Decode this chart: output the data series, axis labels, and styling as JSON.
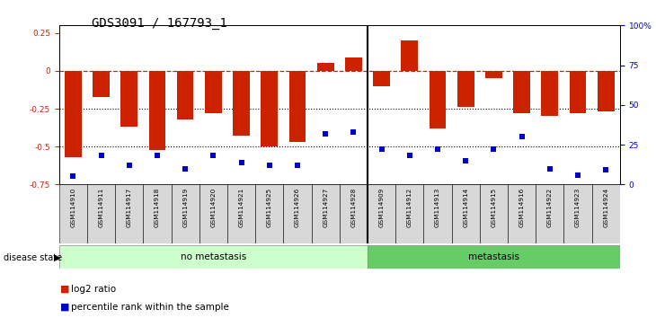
{
  "title": "GDS3091 / 167793_1",
  "samples": [
    "GSM114910",
    "GSM114911",
    "GSM114917",
    "GSM114918",
    "GSM114919",
    "GSM114920",
    "GSM114921",
    "GSM114925",
    "GSM114926",
    "GSM114927",
    "GSM114928",
    "GSM114909",
    "GSM114912",
    "GSM114913",
    "GSM114914",
    "GSM114915",
    "GSM114916",
    "GSM114922",
    "GSM114923",
    "GSM114924"
  ],
  "log2_ratio": [
    -0.57,
    -0.17,
    -0.37,
    -0.52,
    -0.32,
    -0.28,
    -0.43,
    -0.5,
    -0.47,
    0.05,
    0.09,
    -0.1,
    0.2,
    -0.38,
    -0.24,
    -0.05,
    -0.28,
    -0.3,
    -0.28,
    -0.27
  ],
  "percentile_pct": [
    5,
    18,
    12,
    18,
    10,
    18,
    14,
    12,
    12,
    32,
    33,
    22,
    18,
    22,
    15,
    22,
    30,
    10,
    6,
    9
  ],
  "no_metastasis_count": 11,
  "metastasis_count": 9,
  "ylim_left": [
    -0.75,
    0.3
  ],
  "ylim_right": [
    0,
    100
  ],
  "bar_color": "#cc2200",
  "dot_color": "#0000cc",
  "hline_color": "#cc2200",
  "no_metastasis_color": "#ccffcc",
  "metastasis_color": "#66cc66",
  "dotted_line_color": "black",
  "title_fontsize": 10,
  "tick_fontsize": 6.5,
  "label_fontsize": 7.5
}
